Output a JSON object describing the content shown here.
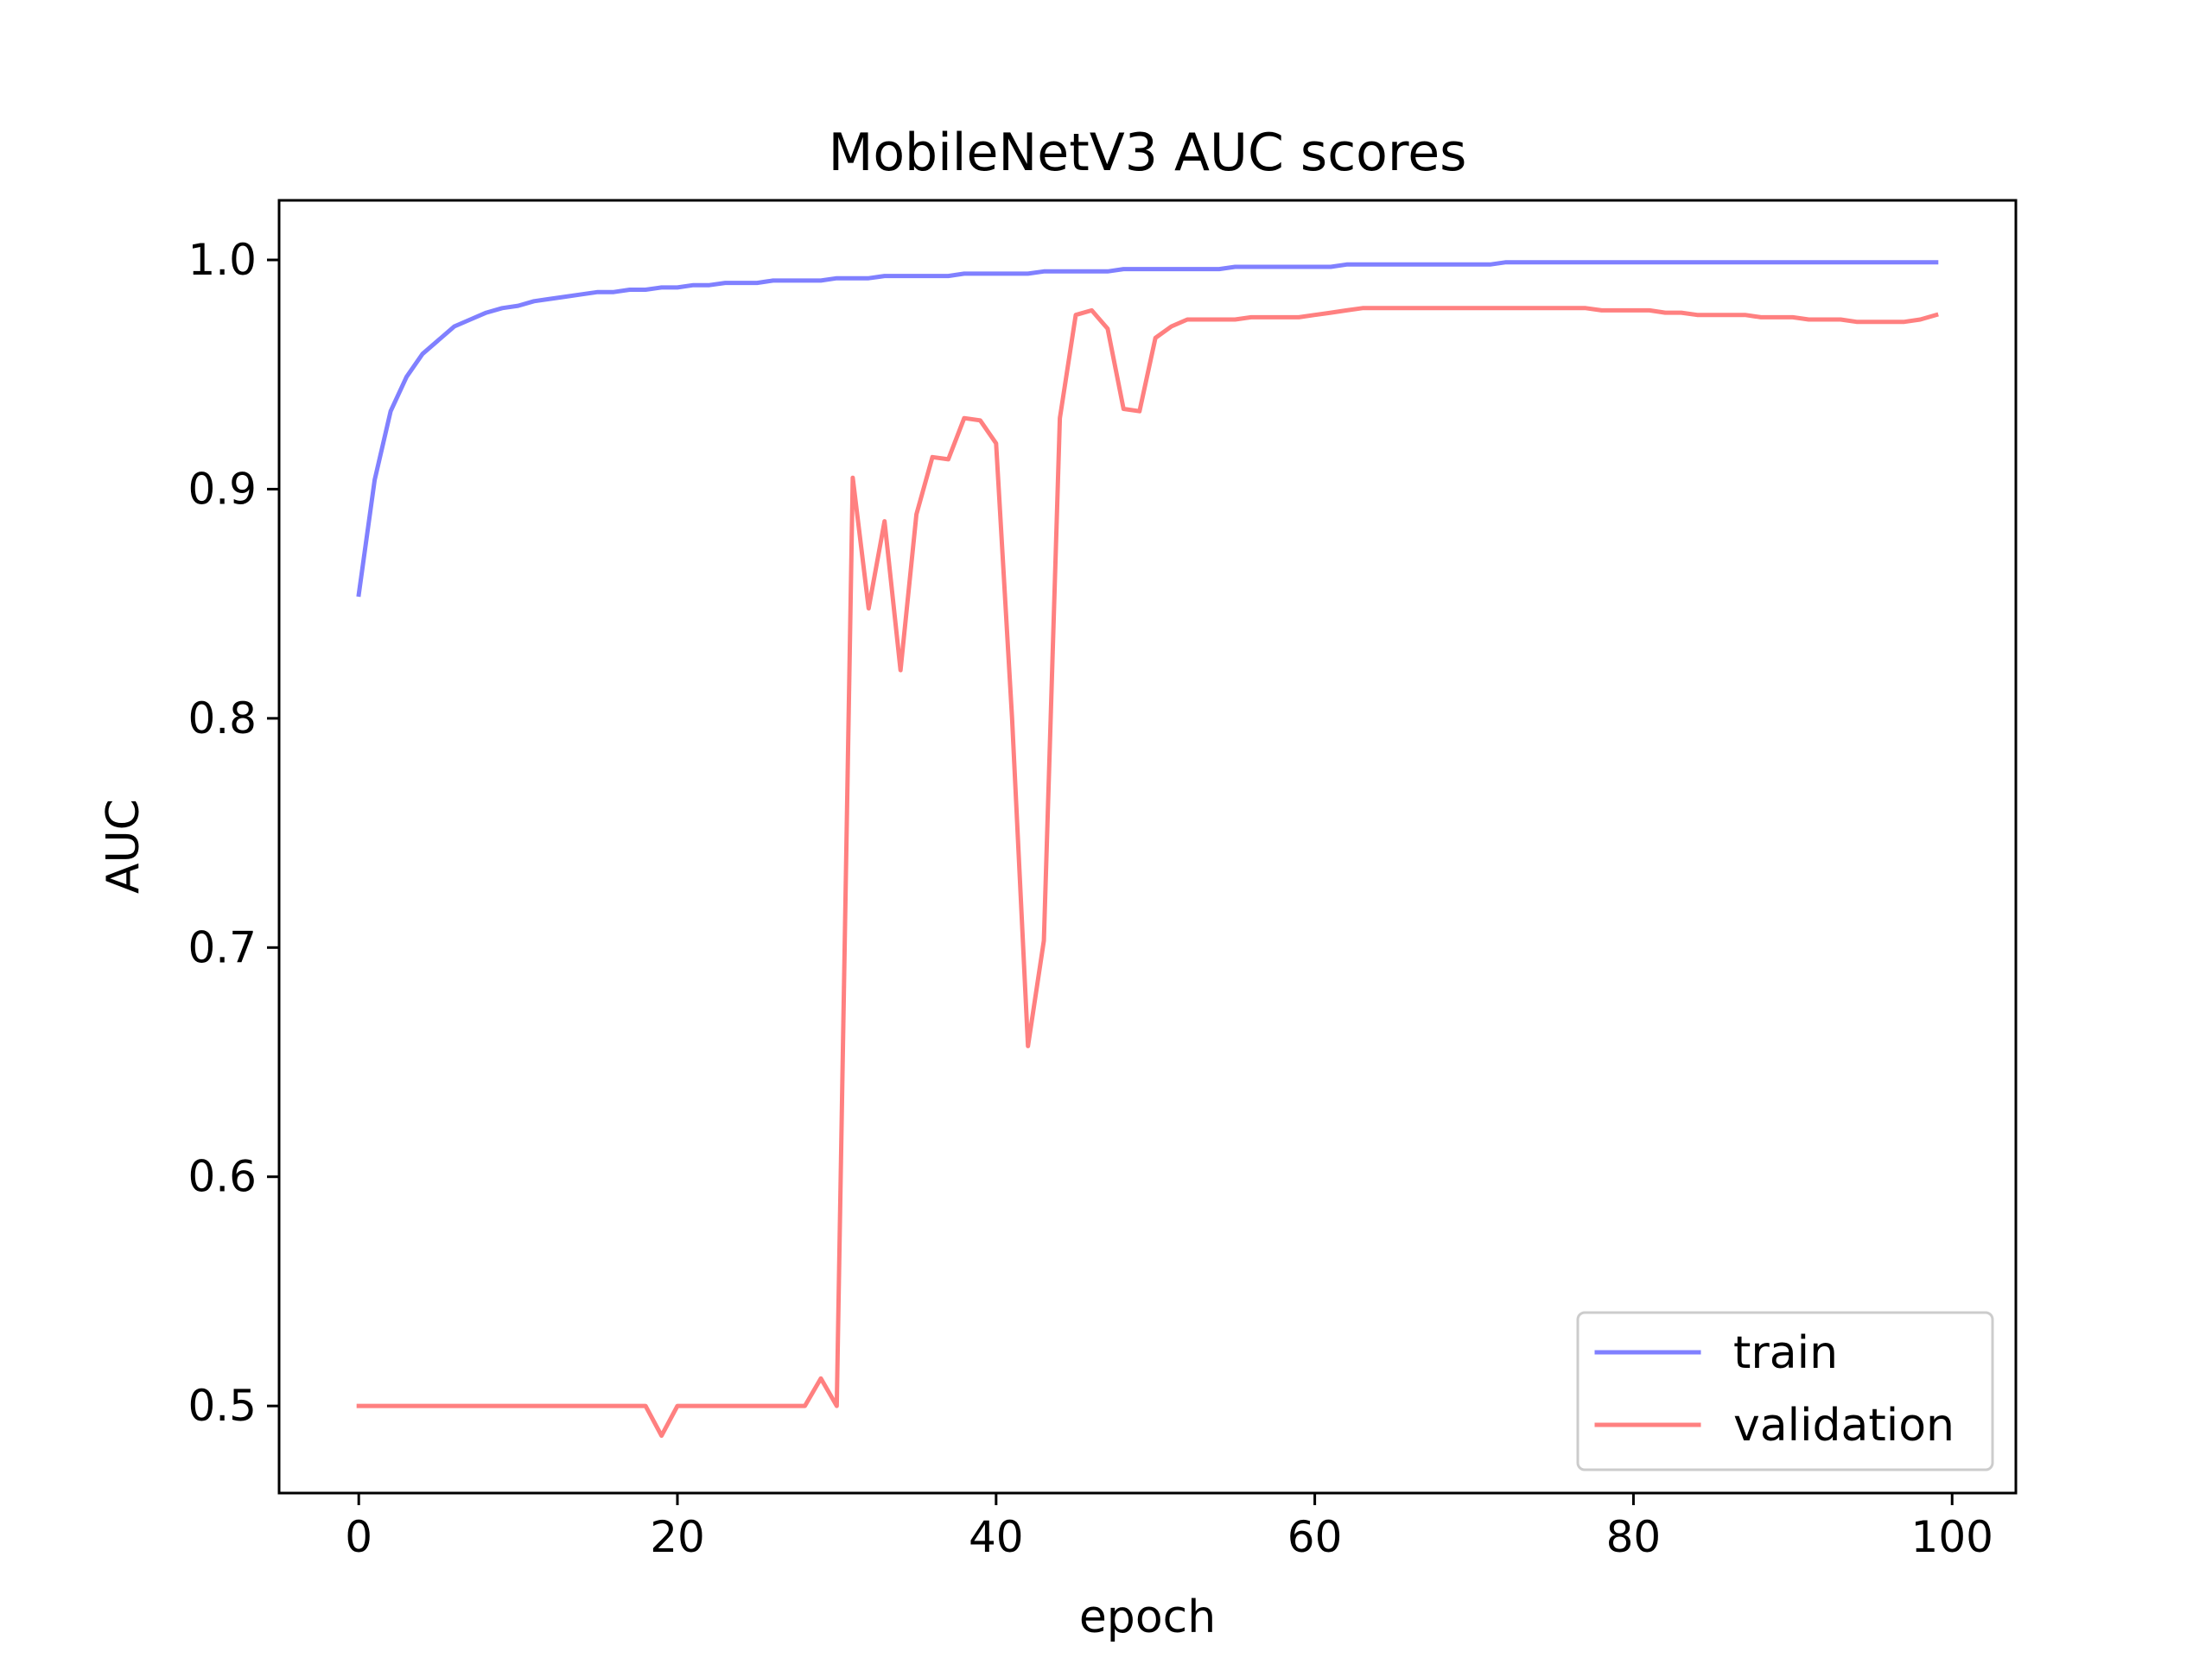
{
  "chart_data": {
    "type": "line",
    "title": "MobileNetV3 AUC scores",
    "xlabel": "epoch",
    "ylabel": "AUC",
    "xlim": [
      -5,
      104
    ],
    "ylim": [
      0.462,
      1.026
    ],
    "xticks": [
      0,
      20,
      40,
      60,
      80,
      100
    ],
    "yticks": [
      0.5,
      0.6,
      0.7,
      0.8,
      0.9,
      1.0
    ],
    "xtick_labels": [
      "0",
      "20",
      "40",
      "60",
      "80",
      "100"
    ],
    "ytick_labels": [
      "0.5",
      "0.6",
      "0.7",
      "0.8",
      "0.9",
      "1.0"
    ],
    "grid": false,
    "legend_position": "bottom-right",
    "x": [
      0,
      1,
      2,
      3,
      4,
      5,
      6,
      7,
      8,
      9,
      10,
      11,
      12,
      13,
      14,
      15,
      16,
      17,
      18,
      19,
      20,
      21,
      22,
      23,
      24,
      25,
      26,
      27,
      28,
      29,
      30,
      31,
      32,
      33,
      34,
      35,
      36,
      37,
      38,
      39,
      40,
      41,
      42,
      43,
      44,
      45,
      46,
      47,
      48,
      49,
      50,
      51,
      52,
      53,
      54,
      55,
      56,
      57,
      58,
      59,
      60,
      61,
      62,
      63,
      64,
      65,
      66,
      67,
      68,
      69,
      70,
      71,
      72,
      73,
      74,
      75,
      76,
      77,
      78,
      79,
      80,
      81,
      82,
      83,
      84,
      85,
      86,
      87,
      88,
      89,
      90,
      91,
      92,
      93,
      94,
      95,
      96,
      97,
      98,
      99
    ],
    "series": [
      {
        "name": "train",
        "color": "#8080ff",
        "values": [
          0.854,
          0.904,
          0.934,
          0.949,
          0.959,
          0.965,
          0.971,
          0.974,
          0.977,
          0.979,
          0.98,
          0.982,
          0.983,
          0.984,
          0.985,
          0.986,
          0.986,
          0.987,
          0.987,
          0.988,
          0.988,
          0.989,
          0.989,
          0.99,
          0.99,
          0.99,
          0.991,
          0.991,
          0.991,
          0.991,
          0.992,
          0.992,
          0.992,
          0.993,
          0.993,
          0.993,
          0.993,
          0.993,
          0.994,
          0.994,
          0.994,
          0.994,
          0.994,
          0.995,
          0.995,
          0.995,
          0.995,
          0.995,
          0.996,
          0.996,
          0.996,
          0.996,
          0.996,
          0.996,
          0.996,
          0.997,
          0.997,
          0.997,
          0.997,
          0.997,
          0.997,
          0.997,
          0.998,
          0.998,
          0.998,
          0.998,
          0.998,
          0.998,
          0.998,
          0.998,
          0.998,
          0.998,
          0.999,
          0.999,
          0.999,
          0.999,
          0.999,
          0.999,
          0.999,
          0.999,
          0.999,
          0.999,
          0.999,
          0.999,
          0.999,
          0.999,
          0.999,
          0.999,
          0.999,
          0.999,
          0.999,
          0.999,
          0.999,
          0.999,
          0.999,
          0.999,
          0.999,
          0.999,
          0.999,
          0.999
        ]
      },
      {
        "name": "validation",
        "color": "#ff8080",
        "values": [
          0.5,
          0.5,
          0.5,
          0.5,
          0.5,
          0.5,
          0.5,
          0.5,
          0.5,
          0.5,
          0.5,
          0.5,
          0.5,
          0.5,
          0.5,
          0.5,
          0.5,
          0.5,
          0.5,
          0.487,
          0.5,
          0.5,
          0.5,
          0.5,
          0.5,
          0.5,
          0.5,
          0.5,
          0.5,
          0.512,
          0.5,
          0.905,
          0.848,
          0.886,
          0.821,
          0.889,
          0.914,
          0.913,
          0.931,
          0.93,
          0.92,
          0.8,
          0.657,
          0.703,
          0.931,
          0.976,
          0.978,
          0.97,
          0.935,
          0.934,
          0.966,
          0.971,
          0.974,
          0.974,
          0.974,
          0.974,
          0.975,
          0.975,
          0.975,
          0.975,
          0.976,
          0.977,
          0.978,
          0.979,
          0.979,
          0.979,
          0.979,
          0.979,
          0.979,
          0.979,
          0.979,
          0.979,
          0.979,
          0.979,
          0.979,
          0.979,
          0.979,
          0.979,
          0.978,
          0.978,
          0.978,
          0.978,
          0.977,
          0.977,
          0.976,
          0.976,
          0.976,
          0.976,
          0.975,
          0.975,
          0.975,
          0.974,
          0.974,
          0.974,
          0.973,
          0.973,
          0.973,
          0.973,
          0.974,
          0.976
        ]
      }
    ]
  }
}
